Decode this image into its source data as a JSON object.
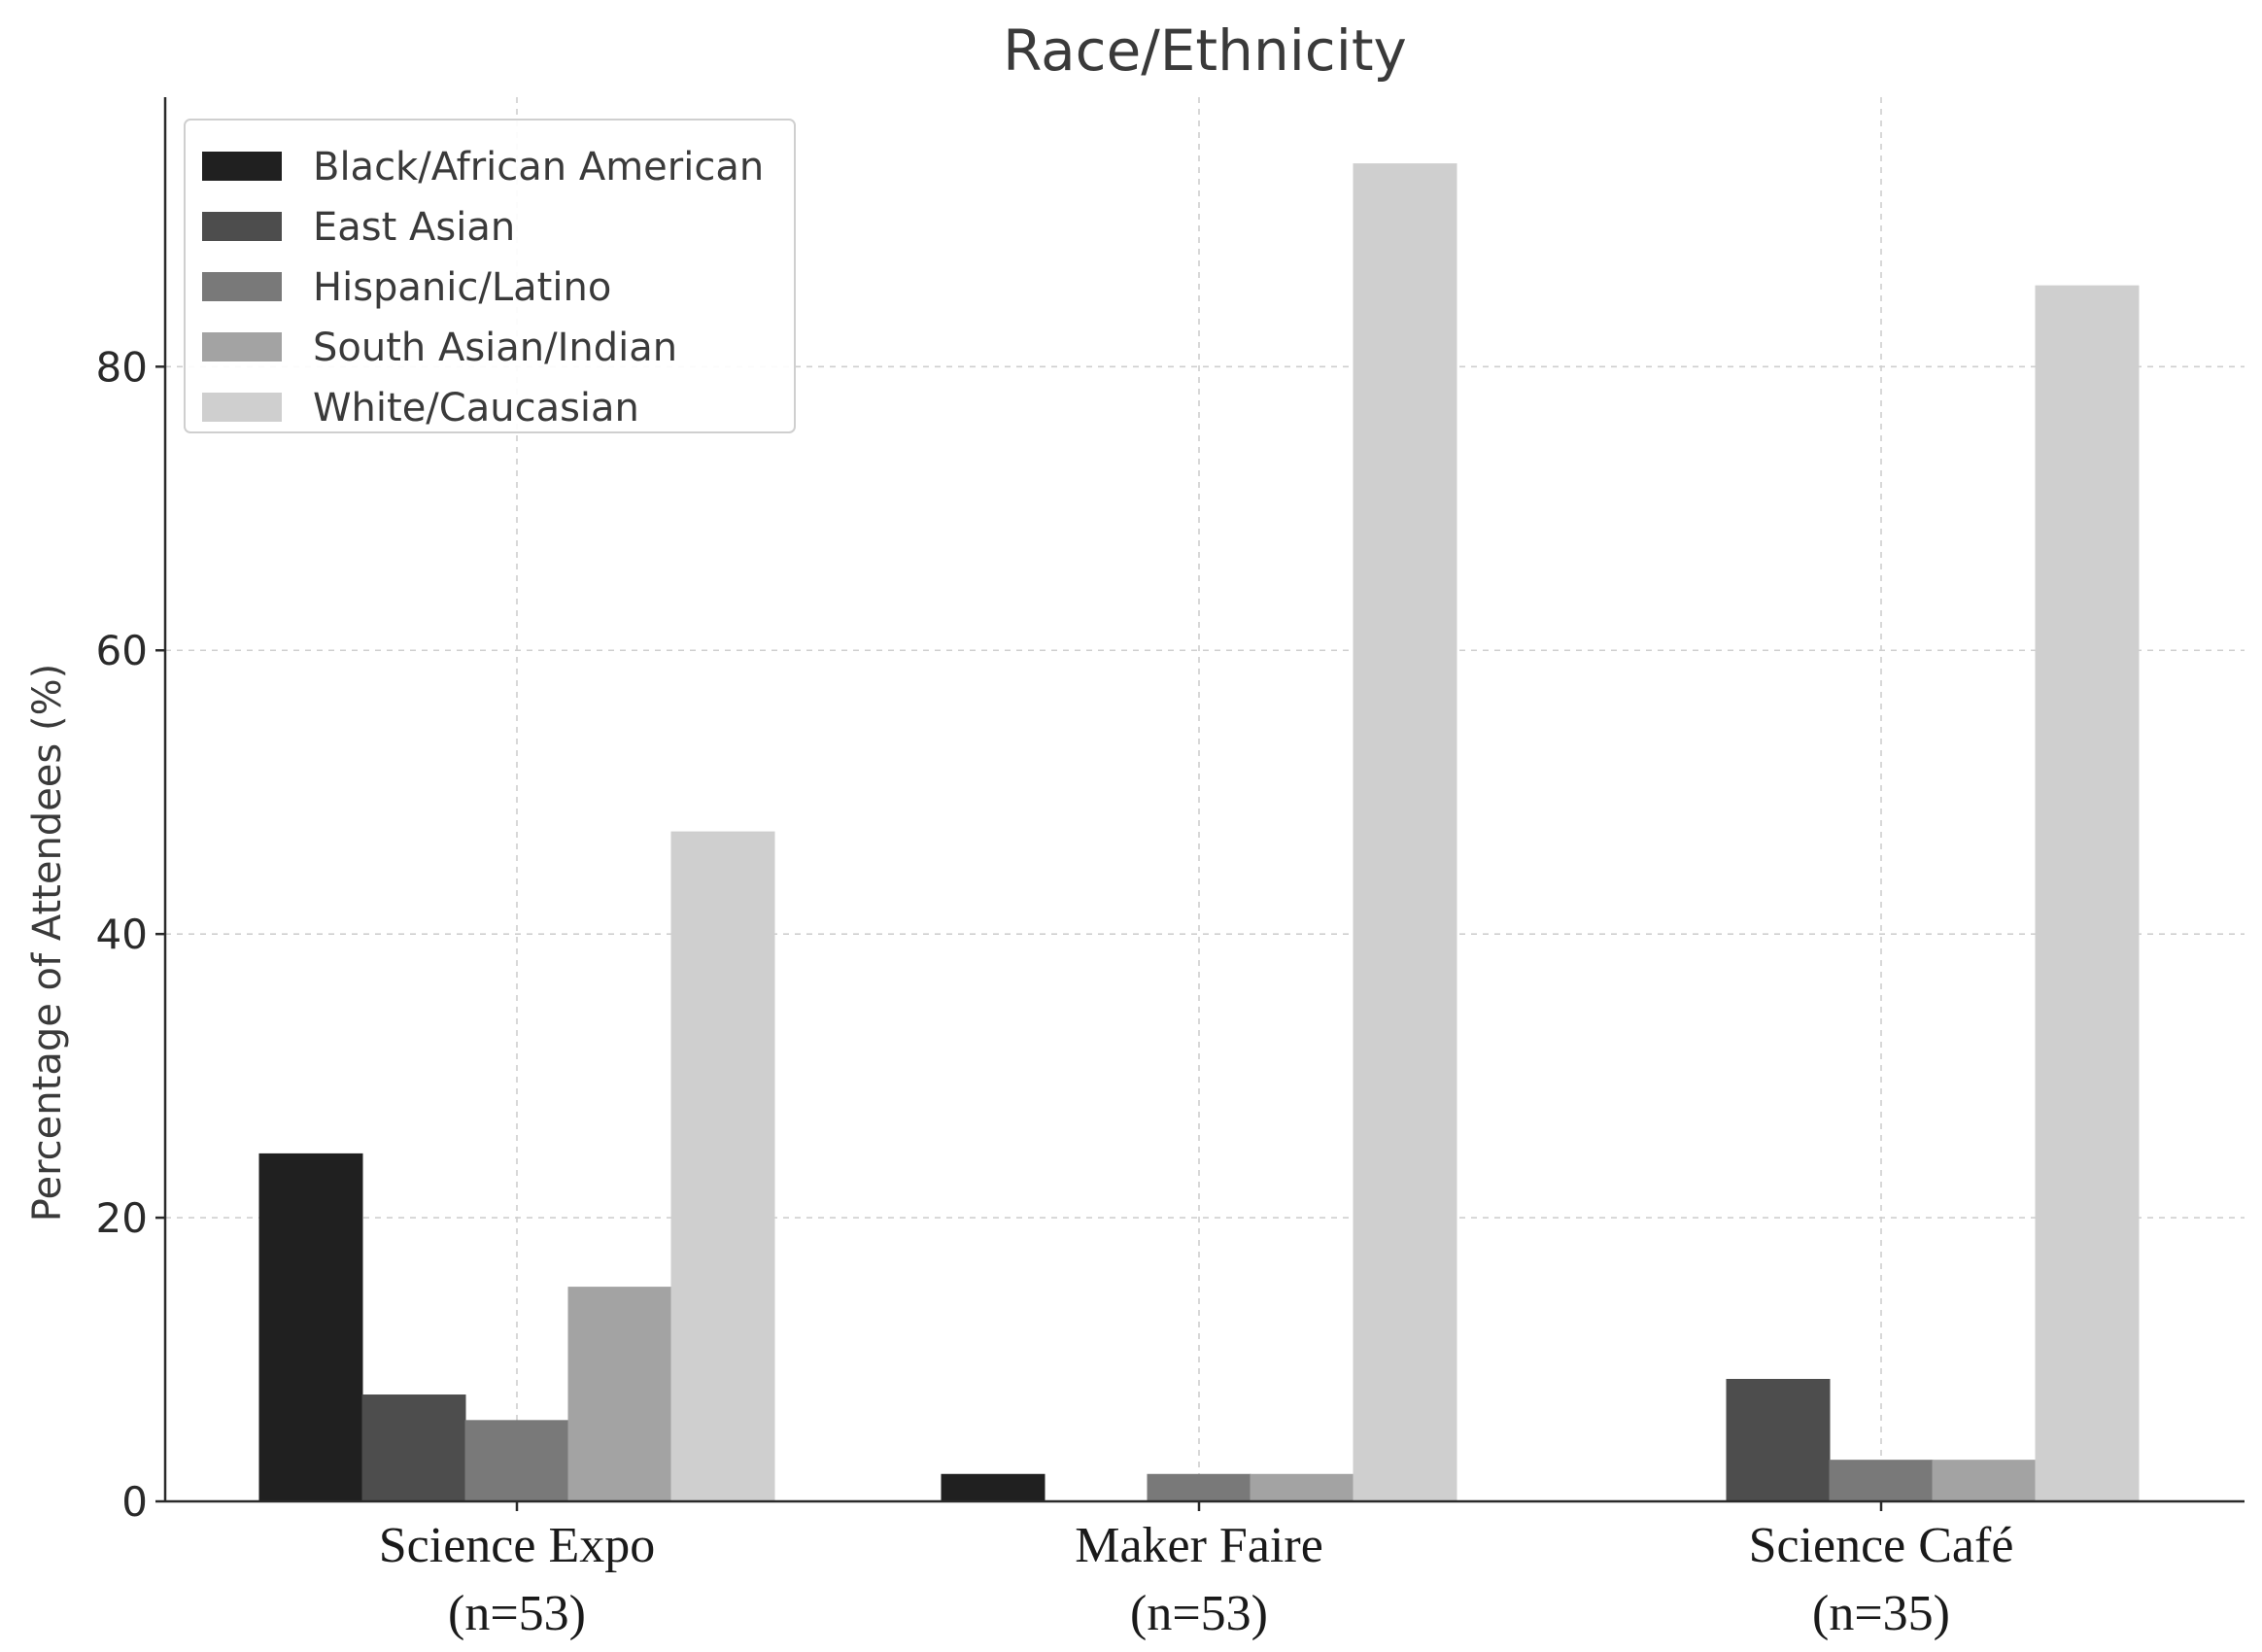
{
  "chart_data": {
    "type": "bar",
    "title": "Race/Ethnicity",
    "ylabel": "Percentage of Attendees (%)",
    "xlabel": "",
    "ylim": [
      0,
      99
    ],
    "yticks": [
      0,
      20,
      40,
      60,
      80
    ],
    "grid": true,
    "legend_position": "top-left",
    "categories": [
      "Science Expo\n(n=53)",
      "Maker Faire\n(n=53)",
      "Science Café\n(n=35)"
    ],
    "category_lines": [
      [
        "Science Expo",
        "(n=53)"
      ],
      [
        "Maker Faire",
        "(n=53)"
      ],
      [
        "Science Café",
        "(n=35)"
      ]
    ],
    "series": [
      {
        "name": "Black/African American",
        "color": "#202020",
        "values": [
          24.5,
          1.9,
          0
        ]
      },
      {
        "name": "East Asian",
        "color": "#4d4d4d",
        "values": [
          7.5,
          0,
          8.6
        ]
      },
      {
        "name": "Hispanic/Latino",
        "color": "#797979",
        "values": [
          5.7,
          1.9,
          2.9
        ]
      },
      {
        "name": "South Asian/Indian",
        "color": "#a3a3a3",
        "values": [
          15.1,
          1.9,
          2.9
        ]
      },
      {
        "name": "White/Caucasian",
        "color": "#cfcfcf",
        "values": [
          47.2,
          94.3,
          85.7
        ]
      }
    ]
  }
}
